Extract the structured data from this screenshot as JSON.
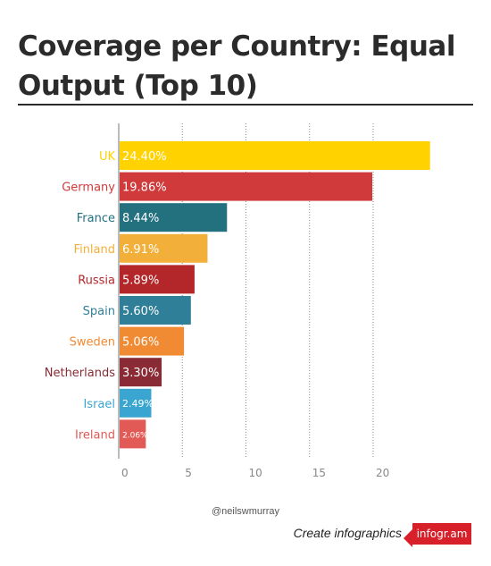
{
  "header": {
    "title": "Coverage per Country: Equal Output (Top 10)"
  },
  "chart_data": {
    "type": "bar",
    "orientation": "horizontal",
    "title": "Coverage per Country: Equal Output (Top 10)",
    "xlabel": "",
    "ylabel": "",
    "xlim": [
      0,
      25
    ],
    "x_ticks": [
      "0",
      "5",
      "10",
      "15",
      "20"
    ],
    "grid": true,
    "categories": [
      "UK",
      "Germany",
      "France",
      "Finland",
      "Russia",
      "Spain",
      "Sweden",
      "Netherlands",
      "Israel",
      "Ireland"
    ],
    "values": [
      24.4,
      19.86,
      8.44,
      6.91,
      5.89,
      5.6,
      5.06,
      3.3,
      2.49,
      2.06
    ],
    "value_labels": [
      "24.40%",
      "19.86%",
      "8.44%",
      "6.91%",
      "5.89%",
      "5.60%",
      "5.06%",
      "3.30%",
      "2.49%",
      "2.06%"
    ],
    "colors": [
      "#ffd200",
      "#d03a3a",
      "#23707f",
      "#f2b03a",
      "#b3272a",
      "#2f7f98",
      "#f08b33",
      "#8a2a34",
      "#3aa5d0",
      "#e25a55"
    ]
  },
  "credit": {
    "author": "@neilswmurray",
    "create_text": "Create infographics",
    "brand": "infogr.am"
  }
}
